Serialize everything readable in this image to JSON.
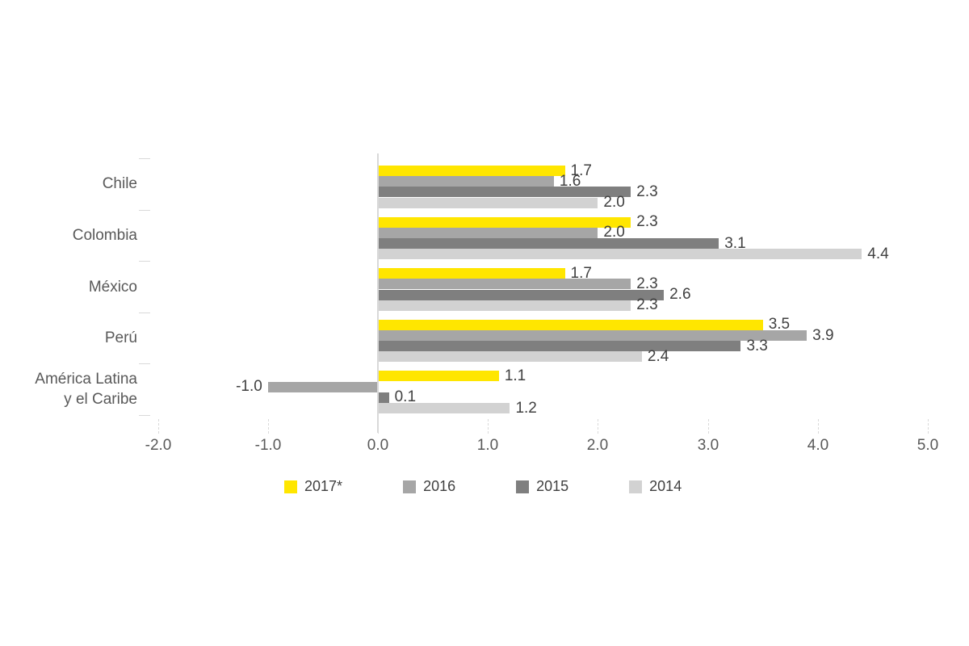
{
  "chart_data": {
    "type": "bar",
    "orientation": "horizontal",
    "title": "",
    "xlabel": "",
    "ylabel": "",
    "categories": [
      "Chile",
      "Colombia",
      "México",
      "Perú",
      "América Latina y el Caribe"
    ],
    "category_label_lines": [
      [
        "Chile"
      ],
      [
        "Colombia"
      ],
      [
        "México"
      ],
      [
        "Perú"
      ],
      [
        "América Latina",
        "y el Caribe"
      ]
    ],
    "series": [
      {
        "name": "2017*",
        "color": "#FFE600",
        "values": [
          1.7,
          2.3,
          1.7,
          3.5,
          1.1
        ]
      },
      {
        "name": "2016",
        "color": "#A6A6A6",
        "values": [
          1.6,
          2.0,
          2.3,
          3.9,
          -1.0
        ]
      },
      {
        "name": "2015",
        "color": "#7F7F7F",
        "values": [
          2.3,
          3.1,
          2.6,
          3.3,
          0.1
        ]
      },
      {
        "name": "2014",
        "color": "#D2D2D2",
        "values": [
          2.0,
          4.4,
          2.3,
          2.4,
          1.2
        ]
      }
    ],
    "value_labels": [
      [
        "1.7",
        "2.3",
        "1.7",
        "3.5",
        "1.1"
      ],
      [
        "1.6",
        "2.0",
        "2.3",
        "3.9",
        "-1.0"
      ],
      [
        "2.3",
        "3.1",
        "2.6",
        "3.3",
        "0.1"
      ],
      [
        "2.0",
        "4.4",
        "2.3",
        "2.4",
        "1.2"
      ]
    ],
    "xlim": [
      -2.0,
      5.0
    ],
    "x_tick_values": [
      -2.0,
      -1.0,
      0.0,
      1.0,
      2.0,
      3.0,
      4.0,
      5.0
    ],
    "x_tick_labels": [
      "-2.0",
      "-1.0",
      "0.0",
      "1.0",
      "2.0",
      "3.0",
      "4.0",
      "5.0"
    ],
    "grid": "off",
    "legend_position": "bottom",
    "colors": {
      "axis": "#D9D9D9",
      "value_label_text": "#404040",
      "category_text": "#595959",
      "tick_text": "#595959",
      "legend_text": "#404040",
      "background": "#FFFFFF"
    }
  }
}
